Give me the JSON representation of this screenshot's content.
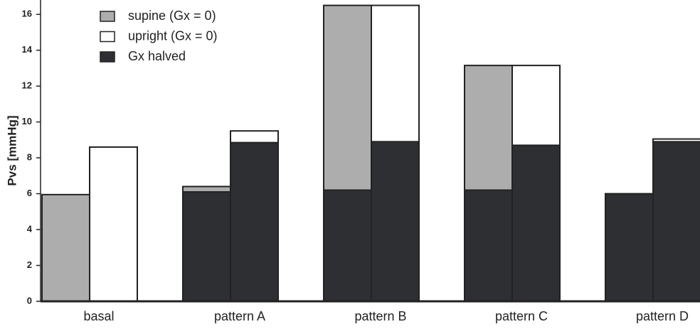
{
  "chart_data": {
    "type": "overlay_bar",
    "y_label": "Pvs [mmHg]",
    "categories": [
      "basal",
      "pattern A",
      "pattern B",
      "pattern C",
      "pattern D"
    ],
    "series": [
      {
        "name": "supine (Gx = 0)",
        "color": "#adadad",
        "values": [
          5.95,
          6.4,
          16.5,
          13.15,
          null
        ]
      },
      {
        "name": "upright (Gx = 0)",
        "color": "#ffffff",
        "values": [
          8.6,
          9.5,
          16.5,
          13.15,
          9.05
        ]
      },
      {
        "name": "Gx halved",
        "color": "#2d2f33",
        "values": [
          [
            null,
            null
          ],
          [
            6.1,
            8.85
          ],
          [
            6.2,
            8.9
          ],
          [
            6.2,
            8.7
          ],
          [
            6.0,
            8.9
          ]
        ]
      }
    ],
    "ylim": [
      0,
      16.8
    ],
    "yticks": [
      0,
      2,
      4,
      6,
      8,
      10,
      12,
      14,
      16
    ]
  }
}
